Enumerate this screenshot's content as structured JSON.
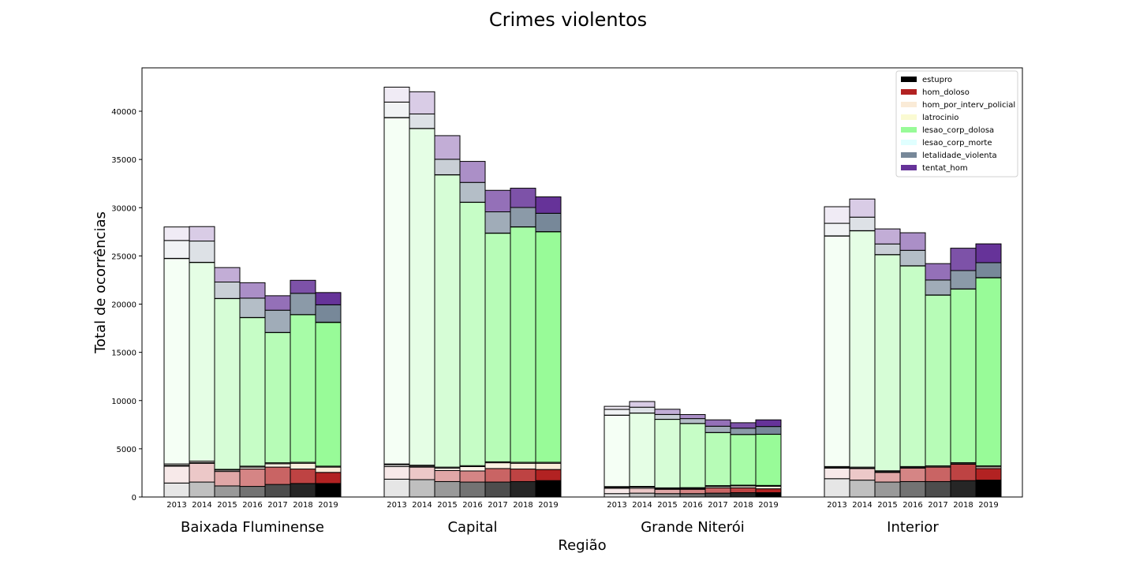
{
  "chart_data": {
    "type": "bar",
    "stacked": true,
    "grouped": true,
    "title": "Crimes violentos",
    "xlabel": "Região",
    "ylabel": "Total de ocorrências",
    "ylim": [
      0,
      44500
    ],
    "yticks": [
      0,
      5000,
      10000,
      15000,
      20000,
      25000,
      30000,
      35000,
      40000
    ],
    "years": [
      "2013",
      "2014",
      "2015",
      "2016",
      "2017",
      "2018",
      "2019"
    ],
    "legend_position": "top-right",
    "grid": false,
    "series": [
      {
        "name": "estupro",
        "color": "#000000"
      },
      {
        "name": "hom_doloso",
        "color": "#b22222"
      },
      {
        "name": "hom_por_interv_policial",
        "color": "#faebd7"
      },
      {
        "name": "latrocinio",
        "color": "#fafad2"
      },
      {
        "name": "lesao_corp_dolosa",
        "color": "#98fb98"
      },
      {
        "name": "lesao_corp_morte",
        "color": "#e0ffff"
      },
      {
        "name": "letalidade_violenta",
        "color": "#778899"
      },
      {
        "name": "tentat_hom",
        "color": "#663399"
      }
    ],
    "regions": [
      {
        "name": "Baixada Fluminense",
        "years": [
          [
            1450,
            1750,
            80,
            150,
            21300,
            20,
            1850,
            1400
          ],
          [
            1550,
            1950,
            70,
            150,
            20600,
            20,
            2200,
            1500
          ],
          [
            1150,
            1500,
            130,
            90,
            17700,
            20,
            1700,
            1500
          ],
          [
            1100,
            1800,
            200,
            100,
            15400,
            20,
            2000,
            1600
          ],
          [
            1300,
            1800,
            350,
            100,
            13500,
            20,
            2300,
            1500
          ],
          [
            1400,
            1500,
            600,
            100,
            15300,
            20,
            2200,
            1350
          ],
          [
            1400,
            1150,
            550,
            100,
            14900,
            30,
            1800,
            1270
          ]
        ]
      },
      {
        "name": "Capital",
        "years": [
          [
            1850,
            1300,
            180,
            100,
            35900,
            20,
            1600,
            1550
          ],
          [
            1800,
            1300,
            100,
            100,
            34900,
            20,
            1500,
            2300
          ],
          [
            1600,
            1150,
            250,
            100,
            30300,
            20,
            1600,
            2450
          ],
          [
            1550,
            1150,
            450,
            100,
            27300,
            20,
            2050,
            2180
          ],
          [
            1550,
            1400,
            600,
            100,
            23700,
            20,
            2200,
            2230
          ],
          [
            1600,
            1300,
            600,
            100,
            24400,
            20,
            2000,
            2000
          ],
          [
            1700,
            1150,
            650,
            100,
            23900,
            20,
            1900,
            1700
          ]
        ]
      },
      {
        "name": "Grande Niterói",
        "years": [
          [
            350,
            550,
            100,
            80,
            7400,
            10,
            600,
            310
          ],
          [
            400,
            500,
            120,
            80,
            7600,
            10,
            600,
            590
          ],
          [
            350,
            450,
            70,
            80,
            7100,
            10,
            500,
            540
          ],
          [
            350,
            450,
            90,
            80,
            6650,
            10,
            500,
            420
          ],
          [
            400,
            550,
            150,
            80,
            5500,
            10,
            650,
            660
          ],
          [
            450,
            500,
            200,
            80,
            5250,
            10,
            650,
            560
          ],
          [
            450,
            400,
            270,
            80,
            5300,
            10,
            800,
            690
          ]
        ]
      },
      {
        "name": "Interior",
        "years": [
          [
            1900,
            1100,
            60,
            100,
            23900,
            20,
            1300,
            1720
          ],
          [
            1750,
            1200,
            50,
            100,
            24500,
            20,
            1400,
            1880
          ],
          [
            1550,
            1000,
            70,
            100,
            22400,
            20,
            1100,
            1560
          ],
          [
            1600,
            1400,
            60,
            100,
            20800,
            20,
            1600,
            1820
          ],
          [
            1600,
            1500,
            30,
            100,
            17700,
            20,
            1550,
            1700
          ],
          [
            1700,
            1700,
            60,
            100,
            18000,
            20,
            1900,
            2320
          ],
          [
            1750,
            1200,
            180,
            100,
            19500,
            20,
            1550,
            1950
          ]
        ]
      }
    ]
  }
}
